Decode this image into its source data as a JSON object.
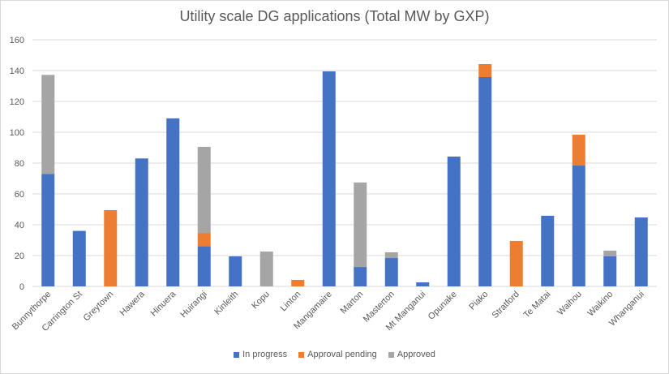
{
  "chart_data": {
    "type": "bar",
    "stacked": true,
    "title": "Utility scale DG applications (Total MW by GXP)",
    "xlabel": "",
    "ylabel": "",
    "ylim": [
      0,
      160
    ],
    "yticks": [
      0,
      20,
      40,
      60,
      80,
      100,
      120,
      140,
      160
    ],
    "grid": true,
    "legend_position": "bottom",
    "categories": [
      "Bunnythorpe",
      "Carrington St",
      "Greytown",
      "Hawera",
      "Hinuera",
      "Huirangi",
      "Kinleith",
      "Kopu",
      "Linton",
      "Mangamaire",
      "Marton",
      "Masterton",
      "Mt Manganui",
      "Opunake",
      "Piako",
      "Stratford",
      "Te Matai",
      "Waihou",
      "Waikino",
      "Whanganui"
    ],
    "series": [
      {
        "name": "In progress",
        "color": "#4472C4",
        "values": [
          73,
          36,
          0,
          83,
          109,
          26,
          19.5,
          0,
          0,
          139.5,
          12.6,
          18.4,
          2.6,
          84.2,
          135.8,
          0,
          45.8,
          78.4,
          19.5,
          44.7
        ]
      },
      {
        "name": "Approval pending",
        "color": "#ED7D31",
        "values": [
          0,
          0,
          49.5,
          0,
          0,
          8.7,
          0,
          0,
          4.2,
          0,
          0,
          0,
          0,
          0,
          8.4,
          29.5,
          0,
          20,
          0,
          0
        ]
      },
      {
        "name": "Approved",
        "color": "#A5A5A5",
        "values": [
          64.2,
          0,
          0,
          0,
          0,
          55.8,
          0,
          22.6,
          0,
          0,
          54.8,
          3.7,
          0,
          0,
          0,
          0,
          0,
          0,
          3.7,
          0
        ]
      }
    ]
  }
}
